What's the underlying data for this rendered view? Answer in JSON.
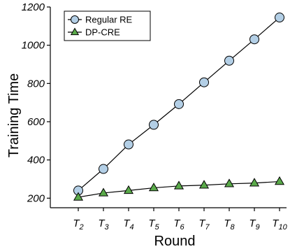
{
  "chart_data": {
    "type": "line",
    "title": "",
    "xlabel": "Round",
    "ylabel": "Training Time",
    "ylim": [
      150,
      1200
    ],
    "yticks": [
      200,
      400,
      600,
      800,
      1000,
      1200
    ],
    "categories": [
      {
        "base": "T",
        "sub": "2"
      },
      {
        "base": "T",
        "sub": "3"
      },
      {
        "base": "T",
        "sub": "4"
      },
      {
        "base": "T",
        "sub": "5"
      },
      {
        "base": "T",
        "sub": "6"
      },
      {
        "base": "T",
        "sub": "7"
      },
      {
        "base": "T",
        "sub": "8"
      },
      {
        "base": "T",
        "sub": "9"
      },
      {
        "base": "T",
        "sub": "10"
      }
    ],
    "series": [
      {
        "name": "Regular RE",
        "marker": "circle",
        "color": "#b3cfe6",
        "values": [
          240,
          353,
          481,
          584,
          692,
          806,
          919,
          1031,
          1145
        ]
      },
      {
        "name": "DP-CRE",
        "marker": "triangle",
        "color": "#5aaa4a",
        "values": [
          205,
          227,
          240,
          254,
          264,
          268,
          275,
          279,
          287
        ]
      }
    ],
    "grid": false,
    "legend_position": "top-left"
  }
}
